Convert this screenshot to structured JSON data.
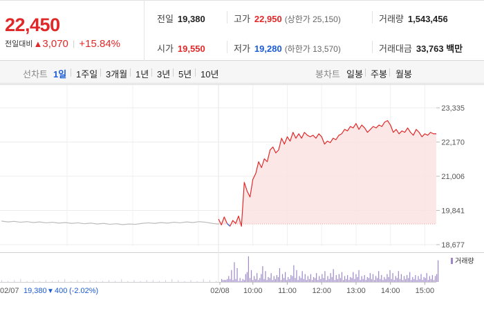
{
  "quote": {
    "price": "22,450",
    "change_label": "전일대비",
    "change_arrow": "▲",
    "change_amount": "3,070",
    "change_percent": "+15.84%"
  },
  "stats": {
    "prev_close": {
      "label": "전일",
      "value": "19,380"
    },
    "high": {
      "label": "고가",
      "value": "22,950",
      "sub": "(상한가 25,150)"
    },
    "volume": {
      "label": "거래량",
      "value": "1,543,456"
    },
    "open": {
      "label": "시가",
      "value": "19,550"
    },
    "low": {
      "label": "저가",
      "value": "19,280",
      "sub": "(하한가 13,570)"
    },
    "trade_value": {
      "label": "거래대금",
      "value": "33,763 백만"
    }
  },
  "toolbar": {
    "line_chart_label": "선차트",
    "periods": [
      "1일",
      "1주일",
      "3개월",
      "1년",
      "3년",
      "5년",
      "10년"
    ],
    "active_period": "1일",
    "candle_label": "봉차트",
    "candles": [
      "일봉",
      "주봉",
      "월봉"
    ]
  },
  "colors": {
    "up": "#e12828",
    "down": "#1a5bd6",
    "prev_line": "#bbbbbb",
    "area_fill": "#fce3e3",
    "volume_bar": "#9c88c8"
  },
  "chart_data": {
    "type": "line",
    "y_ticks": [
      "23,335",
      "22,170",
      "21,006",
      "19,841",
      "18,677"
    ],
    "ylim": [
      18677,
      23335
    ],
    "reference_price": 19380,
    "x_ticks": [
      "02/08",
      "10:00",
      "11:00",
      "12:00",
      "13:00",
      "14:00",
      "15:00"
    ],
    "volume_legend": "거래량",
    "prev_day": {
      "date": "02/07",
      "close": "19,380",
      "arrow": "▼",
      "change": "400",
      "change_percent": "(-2.02%)"
    },
    "prev_day_series": [
      19480,
      19450,
      19470,
      19440,
      19460,
      19430,
      19450,
      19420,
      19440,
      19410,
      19430,
      19400,
      19420,
      19390,
      19410,
      19380,
      19400,
      19370,
      19390,
      19360,
      19380,
      19370,
      19400,
      19420,
      19400,
      19430,
      19410,
      19440,
      19420,
      19450,
      19430,
      19460,
      19440,
      19400,
      19380
    ],
    "today_series": [
      [
        "09:00",
        19550
      ],
      [
        "09:05",
        19350
      ],
      [
        "09:10",
        19620
      ],
      [
        "09:15",
        19400
      ],
      [
        "09:20",
        19300
      ],
      [
        "09:25",
        19500
      ],
      [
        "09:30",
        19400
      ],
      [
        "09:35",
        19650
      ],
      [
        "09:40",
        19300
      ],
      [
        "09:45",
        20800
      ],
      [
        "09:50",
        20500
      ],
      [
        "09:55",
        20300
      ],
      [
        "10:00",
        20900
      ],
      [
        "10:05",
        21100
      ],
      [
        "10:10",
        21500
      ],
      [
        "10:15",
        21300
      ],
      [
        "10:20",
        21600
      ],
      [
        "10:25",
        21500
      ],
      [
        "10:30",
        21900
      ],
      [
        "10:35",
        22000
      ],
      [
        "10:40",
        21800
      ],
      [
        "10:45",
        21900
      ],
      [
        "10:50",
        22300
      ],
      [
        "10:55",
        22100
      ],
      [
        "11:00",
        22350
      ],
      [
        "11:05",
        22200
      ],
      [
        "11:10",
        22500
      ],
      [
        "11:15",
        22300
      ],
      [
        "11:20",
        22450
      ],
      [
        "11:25",
        22300
      ],
      [
        "11:30",
        22500
      ],
      [
        "11:35",
        22400
      ],
      [
        "11:40",
        22350
      ],
      [
        "11:45",
        22400
      ],
      [
        "11:50",
        22300
      ],
      [
        "11:55",
        22450
      ],
      [
        "12:00",
        22350
      ],
      [
        "12:05",
        22100
      ],
      [
        "12:10",
        22200
      ],
      [
        "12:15",
        22150
      ],
      [
        "12:20",
        22300
      ],
      [
        "12:25",
        22250
      ],
      [
        "12:30",
        22400
      ],
      [
        "12:35",
        22450
      ],
      [
        "12:40",
        22600
      ],
      [
        "12:45",
        22550
      ],
      [
        "12:50",
        22700
      ],
      [
        "12:55",
        22650
      ],
      [
        "13:00",
        22800
      ],
      [
        "13:05",
        22600
      ],
      [
        "13:10",
        22750
      ],
      [
        "13:15",
        22650
      ],
      [
        "13:20",
        22500
      ],
      [
        "13:25",
        22600
      ],
      [
        "13:30",
        22700
      ],
      [
        "13:35",
        22650
      ],
      [
        "13:40",
        22750
      ],
      [
        "13:45",
        22700
      ],
      [
        "13:50",
        22850
      ],
      [
        "13:55",
        22900
      ],
      [
        "14:00",
        22750
      ],
      [
        "14:05",
        22500
      ],
      [
        "14:10",
        22600
      ],
      [
        "14:15",
        22450
      ],
      [
        "14:20",
        22550
      ],
      [
        "14:25",
        22500
      ],
      [
        "14:30",
        22650
      ],
      [
        "14:35",
        22500
      ],
      [
        "14:40",
        22400
      ],
      [
        "14:45",
        22600
      ],
      [
        "14:50",
        22500
      ],
      [
        "14:55",
        22350
      ],
      [
        "15:00",
        22450
      ],
      [
        "15:05",
        22400
      ],
      [
        "15:10",
        22500
      ],
      [
        "15:15",
        22450
      ],
      [
        "15:20",
        22450
      ]
    ],
    "volume_prev": [
      2,
      1,
      2,
      3,
      1,
      2,
      1,
      2,
      1,
      2,
      3,
      1,
      2,
      1,
      2,
      1,
      1,
      2,
      1,
      3,
      1,
      2,
      1,
      2,
      2,
      1,
      2,
      3,
      2,
      1,
      2,
      1,
      3,
      2,
      1
    ],
    "volume_today": [
      [
        3,
        2
      ],
      [
        2,
        2
      ],
      [
        3,
        6
      ],
      [
        3,
        12
      ],
      [
        2,
        20
      ],
      [
        3,
        14
      ],
      [
        1,
        4
      ],
      [
        1,
        3
      ],
      [
        2,
        8
      ],
      [
        10,
        26
      ],
      [
        4,
        12
      ],
      [
        2,
        6
      ],
      [
        3,
        9
      ],
      [
        2,
        4
      ],
      [
        8,
        16
      ],
      [
        3,
        11
      ],
      [
        2,
        5
      ],
      [
        4,
        9
      ],
      [
        2,
        6
      ],
      [
        3,
        7
      ],
      [
        5,
        14
      ],
      [
        2,
        8
      ],
      [
        4,
        10
      ],
      [
        2,
        5
      ],
      [
        3,
        7
      ],
      [
        6,
        17
      ],
      [
        4,
        12
      ],
      [
        2,
        6
      ],
      [
        4,
        11
      ],
      [
        3,
        8
      ],
      [
        2,
        6
      ],
      [
        3,
        8
      ],
      [
        2,
        5
      ],
      [
        4,
        9
      ],
      [
        2,
        6
      ],
      [
        3,
        8
      ],
      [
        4,
        11
      ],
      [
        2,
        6
      ],
      [
        3,
        9
      ],
      [
        5,
        13
      ],
      [
        2,
        7
      ],
      [
        3,
        8
      ],
      [
        4,
        10
      ],
      [
        2,
        6
      ],
      [
        3,
        7
      ],
      [
        2,
        5
      ],
      [
        4,
        10
      ],
      [
        3,
        8
      ],
      [
        5,
        12
      ],
      [
        2,
        6
      ],
      [
        3,
        7
      ],
      [
        2,
        5
      ],
      [
        4,
        9
      ],
      [
        3,
        8
      ],
      [
        2,
        6
      ],
      [
        4,
        11
      ],
      [
        3,
        7
      ],
      [
        2,
        5
      ],
      [
        3,
        8
      ],
      [
        5,
        12
      ],
      [
        3,
        9
      ],
      [
        2,
        6
      ],
      [
        4,
        11
      ],
      [
        3,
        8
      ],
      [
        2,
        6
      ],
      [
        3,
        7
      ],
      [
        4,
        10
      ],
      [
        2,
        5
      ],
      [
        3,
        7
      ],
      [
        2,
        6
      ],
      [
        3,
        8
      ],
      [
        2,
        5
      ],
      [
        4,
        9
      ],
      [
        2,
        6
      ],
      [
        3,
        7
      ],
      [
        2,
        6
      ],
      [
        8,
        22
      ]
    ]
  }
}
